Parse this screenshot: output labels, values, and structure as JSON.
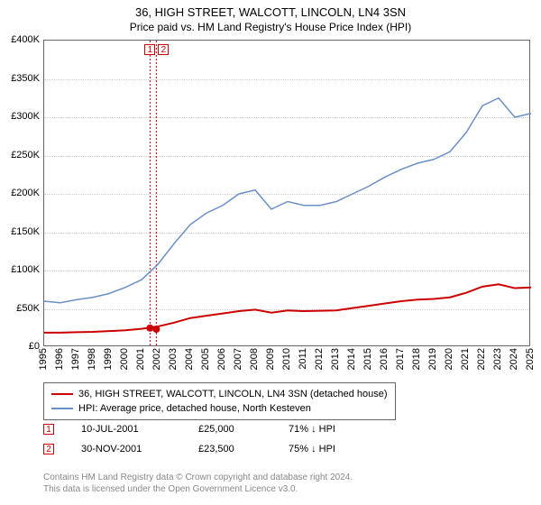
{
  "title": "36, HIGH STREET, WALCOTT, LINCOLN, LN4 3SN",
  "subtitle": "Price paid vs. HM Land Registry's House Price Index (HPI)",
  "chart": {
    "type": "line",
    "background_color": "#ffffff",
    "grid_color": "#cccccc",
    "border_color": "#666666",
    "font_size_ticks": 11,
    "y": {
      "min": 0,
      "max": 400000,
      "step": 50000,
      "prefix": "£",
      "suffix_k": true
    },
    "x": {
      "min": 1995,
      "max": 2025,
      "step": 1,
      "rotate": -90
    },
    "series": [
      {
        "name": "36, HIGH STREET, WALCOTT, LINCOLN, LN4 3SN (detached house)",
        "color": "#cc0000",
        "line_width": 2,
        "points": [
          [
            1995,
            19000
          ],
          [
            1996,
            19000
          ],
          [
            1997,
            19500
          ],
          [
            1998,
            20000
          ],
          [
            1999,
            21000
          ],
          [
            2000,
            22000
          ],
          [
            2001,
            24000
          ],
          [
            2002,
            27000
          ],
          [
            2003,
            32000
          ],
          [
            2004,
            38000
          ],
          [
            2005,
            41000
          ],
          [
            2006,
            44000
          ],
          [
            2007,
            47000
          ],
          [
            2008,
            49000
          ],
          [
            2009,
            45000
          ],
          [
            2010,
            48000
          ],
          [
            2011,
            47000
          ],
          [
            2012,
            47500
          ],
          [
            2013,
            48000
          ],
          [
            2014,
            51000
          ],
          [
            2015,
            54000
          ],
          [
            2016,
            57000
          ],
          [
            2017,
            60000
          ],
          [
            2018,
            62000
          ],
          [
            2019,
            63000
          ],
          [
            2020,
            65000
          ],
          [
            2021,
            71000
          ],
          [
            2022,
            79000
          ],
          [
            2023,
            82000
          ],
          [
            2024,
            77000
          ],
          [
            2025,
            78000
          ]
        ]
      },
      {
        "name": "HPI: Average price, detached house, North Kesteven",
        "color": "#6b8fc9",
        "line_width": 1.5,
        "points": [
          [
            1995,
            60000
          ],
          [
            1996,
            58000
          ],
          [
            1997,
            62000
          ],
          [
            1998,
            65000
          ],
          [
            1999,
            70000
          ],
          [
            2000,
            78000
          ],
          [
            2001,
            88000
          ],
          [
            2002,
            108000
          ],
          [
            2003,
            135000
          ],
          [
            2004,
            160000
          ],
          [
            2005,
            175000
          ],
          [
            2006,
            185000
          ],
          [
            2007,
            200000
          ],
          [
            2008,
            205000
          ],
          [
            2009,
            180000
          ],
          [
            2010,
            190000
          ],
          [
            2011,
            185000
          ],
          [
            2012,
            185000
          ],
          [
            2013,
            190000
          ],
          [
            2014,
            200000
          ],
          [
            2015,
            210000
          ],
          [
            2016,
            222000
          ],
          [
            2017,
            232000
          ],
          [
            2018,
            240000
          ],
          [
            2019,
            245000
          ],
          [
            2020,
            255000
          ],
          [
            2021,
            280000
          ],
          [
            2022,
            315000
          ],
          [
            2023,
            325000
          ],
          [
            2024,
            300000
          ],
          [
            2025,
            305000
          ]
        ]
      }
    ],
    "sale_markers": [
      {
        "label": "1",
        "year": 2001.52,
        "value": 25000
      },
      {
        "label": "2",
        "year": 2001.91,
        "value": 23500
      }
    ],
    "vlines": [
      2001.52,
      2001.91
    ],
    "vline_color": "#cc0000"
  },
  "legend": {
    "items": [
      {
        "color": "#cc0000",
        "label": "36, HIGH STREET, WALCOTT, LINCOLN, LN4 3SN (detached house)"
      },
      {
        "color": "#6b8fc9",
        "label": "HPI: Average price, detached house, North Kesteven"
      }
    ]
  },
  "sales": [
    {
      "marker": "1",
      "date": "10-JUL-2001",
      "price": "£25,000",
      "delta": "71% ↓ HPI"
    },
    {
      "marker": "2",
      "date": "30-NOV-2001",
      "price": "£23,500",
      "delta": "75% ↓ HPI"
    }
  ],
  "footer_line1": "Contains HM Land Registry data © Crown copyright and database right 2024.",
  "footer_line2": "This data is licensed under the Open Government Licence v3.0."
}
